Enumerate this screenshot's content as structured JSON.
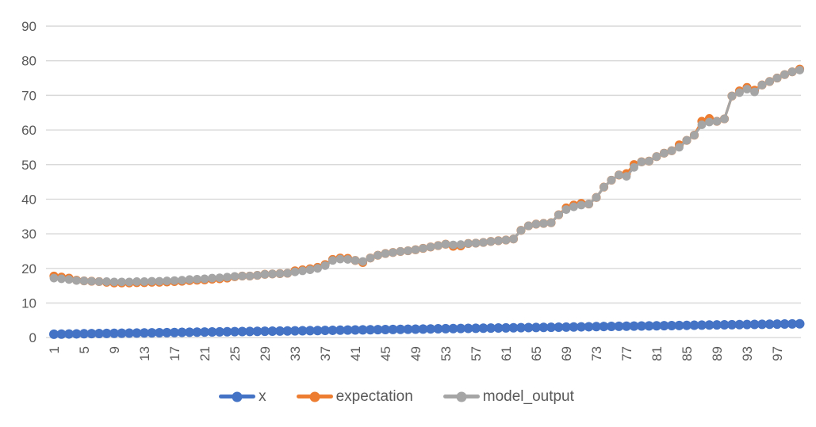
{
  "chart_data": {
    "type": "line",
    "grid": true,
    "legend_position": "bottom",
    "text_color": "#595959",
    "grid_color": "#D9D9D9",
    "ylim": [
      0,
      90
    ],
    "y_ticks": [
      0,
      10,
      20,
      30,
      40,
      50,
      60,
      70,
      80,
      90
    ],
    "x_tick_labels": [
      "1",
      "5",
      "9",
      "13",
      "17",
      "21",
      "25",
      "29",
      "33",
      "37",
      "41",
      "45",
      "49",
      "53",
      "57",
      "61",
      "65",
      "69",
      "73",
      "77",
      "81",
      "85",
      "89",
      "93",
      "97"
    ],
    "categories": [
      1,
      2,
      3,
      4,
      5,
      6,
      7,
      8,
      9,
      10,
      11,
      12,
      13,
      14,
      15,
      16,
      17,
      18,
      19,
      20,
      21,
      22,
      23,
      24,
      25,
      26,
      27,
      28,
      29,
      30,
      31,
      32,
      33,
      34,
      35,
      36,
      37,
      38,
      39,
      40,
      41,
      42,
      43,
      44,
      45,
      46,
      47,
      48,
      49,
      50,
      51,
      52,
      53,
      54,
      55,
      56,
      57,
      58,
      59,
      60,
      61,
      62,
      63,
      64,
      65,
      66,
      67,
      68,
      69,
      70,
      71,
      72,
      73,
      74,
      75,
      76,
      77,
      78,
      79,
      80,
      81,
      82,
      83,
      84,
      85,
      86,
      87,
      88,
      89,
      90,
      91,
      92,
      93,
      94,
      95,
      96,
      97,
      98,
      99,
      100
    ],
    "series": [
      {
        "name": "x",
        "color": "#4472C4",
        "values": [
          1.0,
          1.03,
          1.06,
          1.09,
          1.12,
          1.15,
          1.18,
          1.21,
          1.24,
          1.27,
          1.3,
          1.33,
          1.36,
          1.39,
          1.42,
          1.45,
          1.48,
          1.52,
          1.55,
          1.58,
          1.61,
          1.64,
          1.67,
          1.7,
          1.73,
          1.76,
          1.79,
          1.82,
          1.85,
          1.88,
          1.91,
          1.94,
          1.97,
          2.0,
          2.03,
          2.06,
          2.09,
          2.12,
          2.15,
          2.18,
          2.21,
          2.24,
          2.27,
          2.3,
          2.33,
          2.36,
          2.39,
          2.42,
          2.45,
          2.48,
          2.52,
          2.55,
          2.58,
          2.61,
          2.64,
          2.67,
          2.7,
          2.73,
          2.76,
          2.79,
          2.82,
          2.85,
          2.88,
          2.91,
          2.94,
          2.97,
          3.0,
          3.03,
          3.06,
          3.09,
          3.12,
          3.15,
          3.18,
          3.21,
          3.24,
          3.27,
          3.3,
          3.33,
          3.36,
          3.39,
          3.42,
          3.45,
          3.48,
          3.52,
          3.55,
          3.58,
          3.61,
          3.64,
          3.67,
          3.7,
          3.73,
          3.76,
          3.79,
          3.82,
          3.85,
          3.88,
          3.91,
          3.94,
          3.97,
          4.0
        ]
      },
      {
        "name": "expectation",
        "color": "#ED7D31",
        "values": [
          17.8,
          17.5,
          17.2,
          16.6,
          16.4,
          16.3,
          16.2,
          16.0,
          15.8,
          15.8,
          15.8,
          15.9,
          15.9,
          16.0,
          16.0,
          16.1,
          16.2,
          16.3,
          16.5,
          16.6,
          16.7,
          16.9,
          17.0,
          17.2,
          17.6,
          17.8,
          17.8,
          18.0,
          18.3,
          18.4,
          18.5,
          18.6,
          19.3,
          19.6,
          19.9,
          20.3,
          21.1,
          22.6,
          23.0,
          22.9,
          22.3,
          21.7,
          23.0,
          23.8,
          24.3,
          24.6,
          24.9,
          25.1,
          25.4,
          25.8,
          26.2,
          26.6,
          27.0,
          26.4,
          26.5,
          27.2,
          27.3,
          27.5,
          27.8,
          28.0,
          28.2,
          28.5,
          31.0,
          32.3,
          32.8,
          33.0,
          33.2,
          35.5,
          37.5,
          38.3,
          38.8,
          38.6,
          40.5,
          43.5,
          45.5,
          47.0,
          47.4,
          50.0,
          50.8,
          51.0,
          52.3,
          53.3,
          54.0,
          55.7,
          57.0,
          58.5,
          62.5,
          63.3,
          62.5,
          63.2,
          69.8,
          71.3,
          72.3,
          71.5,
          73.0,
          74.0,
          75.0,
          76.0,
          76.8,
          77.6
        ]
      },
      {
        "name": "model_output",
        "color": "#A5A5A5",
        "values": [
          17.2,
          17.0,
          16.8,
          16.5,
          16.4,
          16.3,
          16.2,
          16.2,
          16.1,
          16.1,
          16.1,
          16.2,
          16.2,
          16.3,
          16.3,
          16.4,
          16.5,
          16.6,
          16.8,
          16.9,
          17.0,
          17.2,
          17.3,
          17.5,
          17.7,
          17.8,
          17.8,
          18.0,
          18.3,
          18.4,
          18.5,
          18.6,
          19.0,
          19.3,
          19.6,
          20.0,
          20.8,
          22.3,
          22.7,
          22.6,
          22.3,
          22.0,
          23.0,
          23.8,
          24.3,
          24.6,
          24.9,
          25.1,
          25.4,
          25.8,
          26.2,
          26.6,
          27.0,
          26.8,
          26.9,
          27.2,
          27.3,
          27.5,
          27.8,
          28.0,
          28.2,
          28.5,
          31.0,
          32.3,
          32.8,
          33.0,
          33.2,
          35.5,
          37.0,
          37.8,
          38.3,
          38.6,
          40.5,
          43.5,
          45.5,
          47.0,
          46.6,
          49.2,
          50.8,
          51.0,
          52.3,
          53.3,
          54.0,
          55.0,
          57.0,
          58.5,
          61.5,
          62.3,
          62.5,
          63.2,
          69.8,
          70.8,
          71.8,
          71.0,
          73.0,
          74.0,
          75.0,
          76.0,
          76.8,
          77.3
        ]
      }
    ]
  },
  "legend": {
    "items": [
      {
        "label": "x"
      },
      {
        "label": "expectation"
      },
      {
        "label": "model_output"
      }
    ]
  }
}
